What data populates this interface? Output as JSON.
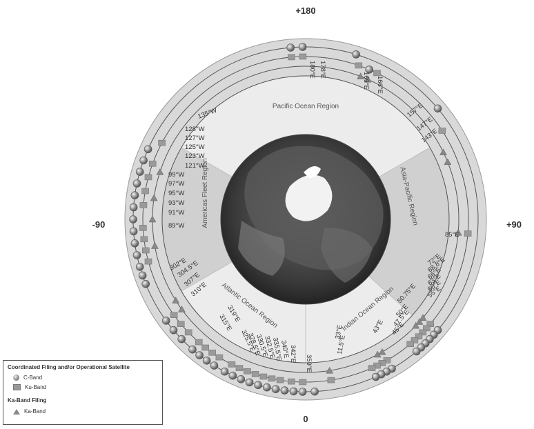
{
  "directions": {
    "top": "+180",
    "bottom": "0",
    "left": "-90",
    "right": "+90"
  },
  "regions": {
    "pacific": "Pacific Ocean Region",
    "asia_pacific": "Asia-Pacific Region",
    "indian": "Indian Ocean Region",
    "atlantic": "Atlantic Ocean Region",
    "americas": "Americas Fleet Region"
  },
  "slots": {
    "pacific": [
      "180°E",
      "178°E",
      "169°E",
      "166°E"
    ],
    "asia_pacific": [
      "157°E",
      "147°E",
      "143°E",
      "85°E"
    ],
    "indian": [
      "72°E",
      "68.8°E",
      "66°E",
      "63°E",
      "60°E",
      "55°E",
      "50.75°E",
      "50°E",
      "47.5°E",
      "45°E",
      "43°E",
      "33°E",
      "11.5°E"
    ],
    "atlantic": [
      "359°E",
      "342°E",
      "340°E",
      "335.5°E",
      "332.5°E",
      "330.5°E",
      "328.5°E",
      "325.5°E",
      "319°E",
      "315°E",
      "310°E",
      "307°E",
      "304.5°E",
      "302°E"
    ],
    "americas": [
      "135°W",
      "128°W",
      "127°W",
      "125°W",
      "123°W",
      "121°W",
      "99°W",
      "97°W",
      "95°W",
      "93°W",
      "91°W",
      "89°W"
    ]
  },
  "legend": {
    "title1": "Coordinated Filing and/or Operational Satellite",
    "c_band": "C-Band",
    "ku_band": "Ku-Band",
    "title2": "Ka-Band Filing",
    "ka_band": "Ka-Band"
  },
  "colors": {
    "outer_ring": "#d9d9d9",
    "sector_light": "#ececec",
    "sector_dark": "#d0d0d0",
    "ring_line": "#555555",
    "globe_dark": "#2a2a2a",
    "polar_ice": "#f2f2f2"
  },
  "icons": {
    "c_band": "sphere-icon",
    "ku_band": "square-icon",
    "ka_band": "triangle-icon"
  }
}
